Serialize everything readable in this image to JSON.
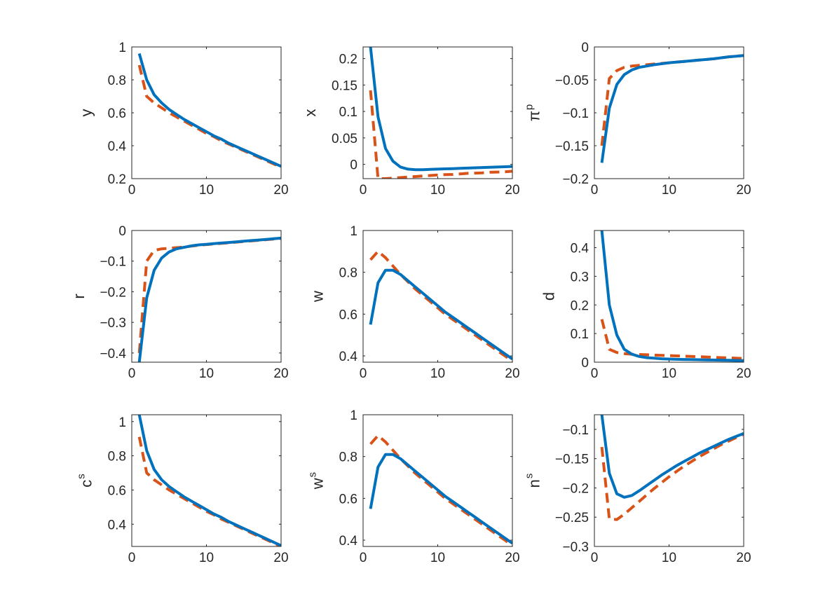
{
  "chart_data": [
    {
      "type": "line",
      "ylabel": "y",
      "xlim": [
        0,
        20
      ],
      "ylim": [
        0.2,
        1
      ],
      "xticks": [
        "0",
        "10",
        "20"
      ],
      "yticks": [
        "0.2",
        "0.4",
        "0.6",
        "0.8",
        "1"
      ],
      "series": [
        {
          "color": "#0072BD",
          "style": "solid",
          "x": [
            1,
            2,
            3,
            4,
            5,
            6,
            7,
            8,
            9,
            10,
            11,
            12,
            13,
            14,
            15,
            16,
            17,
            18,
            19,
            20
          ],
          "values": [
            0.96,
            0.8,
            0.71,
            0.66,
            0.62,
            0.59,
            0.56,
            0.535,
            0.51,
            0.485,
            0.46,
            0.44,
            0.415,
            0.395,
            0.375,
            0.355,
            0.335,
            0.315,
            0.295,
            0.275
          ]
        },
        {
          "color": "#D95319",
          "style": "dashed",
          "x": [
            1,
            2,
            3,
            4,
            5,
            6,
            7,
            8,
            9,
            10,
            11,
            12,
            13,
            14,
            15,
            16,
            17,
            18,
            19,
            20
          ],
          "values": [
            0.89,
            0.7,
            0.66,
            0.63,
            0.6,
            0.575,
            0.55,
            0.525,
            0.5,
            0.475,
            0.455,
            0.43,
            0.41,
            0.39,
            0.37,
            0.35,
            0.33,
            0.31,
            0.29,
            0.27
          ]
        }
      ]
    },
    {
      "type": "line",
      "ylabel": "x",
      "xlim": [
        0,
        20
      ],
      "ylim": [
        -0.027,
        0.222
      ],
      "xticks": [
        "0",
        "10",
        "20"
      ],
      "yticks": [
        "0",
        "0.05",
        "0.1",
        "0.15",
        "0.2"
      ],
      "series": [
        {
          "color": "#0072BD",
          "style": "solid",
          "x": [
            1,
            2,
            3,
            4,
            5,
            6,
            7,
            8,
            9,
            10,
            11,
            12,
            13,
            14,
            15,
            16,
            17,
            18,
            19,
            20
          ],
          "values": [
            0.222,
            0.09,
            0.03,
            0.006,
            -0.005,
            -0.009,
            -0.01,
            -0.01,
            -0.0095,
            -0.009,
            -0.0085,
            -0.008,
            -0.0075,
            -0.007,
            -0.0065,
            -0.006,
            -0.0055,
            -0.005,
            -0.0045,
            -0.004
          ]
        },
        {
          "color": "#D95319",
          "style": "dashed",
          "x": [
            1,
            2,
            3,
            4,
            5,
            6,
            7,
            8,
            9,
            10,
            11,
            12,
            13,
            14,
            15,
            16,
            17,
            18,
            19,
            20
          ],
          "values": [
            0.14,
            -0.027,
            -0.027,
            -0.026,
            -0.025,
            -0.024,
            -0.023,
            -0.022,
            -0.021,
            -0.02,
            -0.0195,
            -0.019,
            -0.018,
            -0.017,
            -0.0165,
            -0.016,
            -0.015,
            -0.0145,
            -0.014,
            -0.013
          ]
        }
      ]
    },
    {
      "type": "line",
      "ylabel": "π",
      "ylabel_sup": "p",
      "xlim": [
        0,
        20
      ],
      "ylim": [
        -0.2,
        0
      ],
      "xticks": [
        "0",
        "10",
        "20"
      ],
      "yticks": [
        "−0.2",
        "−0.15",
        "−0.1",
        "−0.05",
        "0"
      ],
      "series": [
        {
          "color": "#0072BD",
          "style": "solid",
          "x": [
            1,
            2,
            3,
            4,
            5,
            6,
            7,
            8,
            9,
            10,
            11,
            12,
            13,
            14,
            15,
            16,
            17,
            18,
            19,
            20
          ],
          "values": [
            -0.176,
            -0.093,
            -0.057,
            -0.042,
            -0.035,
            -0.031,
            -0.029,
            -0.027,
            -0.0255,
            -0.024,
            -0.023,
            -0.022,
            -0.021,
            -0.02,
            -0.019,
            -0.018,
            -0.0165,
            -0.015,
            -0.014,
            -0.013
          ]
        },
        {
          "color": "#D95319",
          "style": "dashed",
          "x": [
            1,
            2,
            3,
            4,
            5,
            6,
            7,
            8,
            9,
            10,
            11,
            12,
            13,
            14,
            15,
            16,
            17,
            18,
            19,
            20
          ],
          "values": [
            -0.15,
            -0.048,
            -0.036,
            -0.031,
            -0.029,
            -0.028,
            -0.027,
            -0.026,
            -0.025,
            -0.024,
            -0.023,
            -0.022,
            -0.021,
            -0.02,
            -0.019,
            -0.018,
            -0.0165,
            -0.015,
            -0.014,
            -0.013
          ]
        }
      ]
    },
    {
      "type": "line",
      "ylabel": "r",
      "xlim": [
        0,
        20
      ],
      "ylim": [
        -0.43,
        0
      ],
      "xticks": [
        "0",
        "10",
        "20"
      ],
      "yticks": [
        "−0.4",
        "−0.3",
        "−0.2",
        "−0.1",
        "0"
      ],
      "series": [
        {
          "color": "#0072BD",
          "style": "solid",
          "x": [
            1,
            2,
            3,
            4,
            5,
            6,
            7,
            8,
            9,
            10,
            11,
            12,
            13,
            14,
            15,
            16,
            17,
            18,
            19,
            20
          ],
          "values": [
            -0.43,
            -0.22,
            -0.13,
            -0.09,
            -0.07,
            -0.06,
            -0.055,
            -0.05,
            -0.047,
            -0.045,
            -0.043,
            -0.041,
            -0.039,
            -0.037,
            -0.035,
            -0.033,
            -0.031,
            -0.029,
            -0.027,
            -0.025
          ]
        },
        {
          "color": "#D95319",
          "style": "dashed",
          "x": [
            1,
            2,
            3,
            4,
            5,
            6,
            7,
            8,
            9,
            10,
            11,
            12,
            13,
            14,
            15,
            16,
            17,
            18,
            19,
            20
          ],
          "values": [
            -0.4,
            -0.1,
            -0.065,
            -0.06,
            -0.058,
            -0.056,
            -0.054,
            -0.051,
            -0.048,
            -0.046,
            -0.044,
            -0.042,
            -0.04,
            -0.038,
            -0.036,
            -0.034,
            -0.032,
            -0.03,
            -0.028,
            -0.026
          ]
        }
      ]
    },
    {
      "type": "line",
      "ylabel": "w",
      "xlim": [
        0,
        20
      ],
      "ylim": [
        0.37,
        1
      ],
      "xticks": [
        "0",
        "10",
        "20"
      ],
      "yticks": [
        "0.4",
        "0.6",
        "0.8",
        "1"
      ],
      "series": [
        {
          "color": "#0072BD",
          "style": "solid",
          "x": [
            1,
            2,
            3,
            4,
            5,
            6,
            7,
            8,
            9,
            10,
            11,
            12,
            13,
            14,
            15,
            16,
            17,
            18,
            19,
            20
          ],
          "values": [
            0.55,
            0.75,
            0.81,
            0.81,
            0.79,
            0.76,
            0.73,
            0.7,
            0.67,
            0.64,
            0.61,
            0.585,
            0.56,
            0.535,
            0.51,
            0.485,
            0.46,
            0.435,
            0.41,
            0.385
          ]
        },
        {
          "color": "#D95319",
          "style": "dashed",
          "x": [
            1,
            2,
            3,
            4,
            5,
            6,
            7,
            8,
            9,
            10,
            11,
            12,
            13,
            14,
            15,
            16,
            17,
            18,
            19,
            20
          ],
          "values": [
            0.86,
            0.9,
            0.87,
            0.83,
            0.79,
            0.755,
            0.72,
            0.69,
            0.66,
            0.63,
            0.6,
            0.575,
            0.55,
            0.525,
            0.5,
            0.475,
            0.45,
            0.425,
            0.4,
            0.375
          ]
        }
      ]
    },
    {
      "type": "line",
      "ylabel": "d",
      "xlim": [
        0,
        20
      ],
      "ylim": [
        0,
        0.46
      ],
      "xticks": [
        "0",
        "10",
        "20"
      ],
      "yticks": [
        "0",
        "0.1",
        "0.2",
        "0.3",
        "0.4"
      ],
      "series": [
        {
          "color": "#0072BD",
          "style": "solid",
          "x": [
            1,
            2,
            3,
            4,
            5,
            6,
            7,
            8,
            9,
            10,
            11,
            12,
            13,
            14,
            15,
            16,
            17,
            18,
            19,
            20
          ],
          "values": [
            0.46,
            0.2,
            0.095,
            0.045,
            0.028,
            0.02,
            0.016,
            0.014,
            0.012,
            0.011,
            0.01,
            0.0095,
            0.009,
            0.0085,
            0.008,
            0.0075,
            0.007,
            0.0065,
            0.006,
            0.0055
          ]
        },
        {
          "color": "#D95319",
          "style": "dashed",
          "x": [
            1,
            2,
            3,
            4,
            5,
            6,
            7,
            8,
            9,
            10,
            11,
            12,
            13,
            14,
            15,
            16,
            17,
            18,
            19,
            20
          ],
          "values": [
            0.15,
            0.045,
            0.034,
            0.03,
            0.028,
            0.027,
            0.026,
            0.025,
            0.024,
            0.023,
            0.022,
            0.021,
            0.02,
            0.019,
            0.018,
            0.017,
            0.016,
            0.015,
            0.014,
            0.013
          ]
        }
      ]
    },
    {
      "type": "line",
      "ylabel": "c",
      "ylabel_sup": "s",
      "xlim": [
        0,
        20
      ],
      "ylim": [
        0.27,
        1.04
      ],
      "xticks": [
        "0",
        "10",
        "20"
      ],
      "yticks": [
        "0.4",
        "0.6",
        "0.8",
        "1"
      ],
      "series": [
        {
          "color": "#0072BD",
          "style": "solid",
          "x": [
            1,
            2,
            3,
            4,
            5,
            6,
            7,
            8,
            9,
            10,
            11,
            12,
            13,
            14,
            15,
            16,
            17,
            18,
            19,
            20
          ],
          "values": [
            1.04,
            0.83,
            0.72,
            0.66,
            0.62,
            0.59,
            0.56,
            0.535,
            0.51,
            0.485,
            0.46,
            0.44,
            0.415,
            0.395,
            0.375,
            0.355,
            0.335,
            0.315,
            0.295,
            0.275
          ]
        },
        {
          "color": "#D95319",
          "style": "dashed",
          "x": [
            1,
            2,
            3,
            4,
            5,
            6,
            7,
            8,
            9,
            10,
            11,
            12,
            13,
            14,
            15,
            16,
            17,
            18,
            19,
            20
          ],
          "values": [
            0.91,
            0.7,
            0.66,
            0.63,
            0.6,
            0.575,
            0.55,
            0.525,
            0.5,
            0.475,
            0.455,
            0.43,
            0.41,
            0.39,
            0.37,
            0.35,
            0.33,
            0.31,
            0.29,
            0.27
          ]
        }
      ]
    },
    {
      "type": "line",
      "ylabel": "w",
      "ylabel_sup": "s",
      "xlim": [
        0,
        20
      ],
      "ylim": [
        0.37,
        1
      ],
      "xticks": [
        "0",
        "10",
        "20"
      ],
      "yticks": [
        "0.4",
        "0.6",
        "0.8",
        "1"
      ],
      "series": [
        {
          "color": "#0072BD",
          "style": "solid",
          "x": [
            1,
            2,
            3,
            4,
            5,
            6,
            7,
            8,
            9,
            10,
            11,
            12,
            13,
            14,
            15,
            16,
            17,
            18,
            19,
            20
          ],
          "values": [
            0.55,
            0.75,
            0.81,
            0.81,
            0.79,
            0.76,
            0.73,
            0.7,
            0.67,
            0.64,
            0.61,
            0.585,
            0.56,
            0.535,
            0.51,
            0.485,
            0.46,
            0.435,
            0.41,
            0.385
          ]
        },
        {
          "color": "#D95319",
          "style": "dashed",
          "x": [
            1,
            2,
            3,
            4,
            5,
            6,
            7,
            8,
            9,
            10,
            11,
            12,
            13,
            14,
            15,
            16,
            17,
            18,
            19,
            20
          ],
          "values": [
            0.86,
            0.9,
            0.87,
            0.83,
            0.79,
            0.755,
            0.72,
            0.69,
            0.66,
            0.63,
            0.6,
            0.575,
            0.55,
            0.525,
            0.5,
            0.475,
            0.45,
            0.425,
            0.4,
            0.375
          ]
        }
      ]
    },
    {
      "type": "line",
      "ylabel": "n",
      "ylabel_sup": "s",
      "xlim": [
        0,
        20
      ],
      "ylim": [
        -0.3,
        -0.075
      ],
      "xticks": [
        "0",
        "10",
        "20"
      ],
      "yticks": [
        "−0.3",
        "−0.25",
        "−0.2",
        "−0.15",
        "−0.1"
      ],
      "series": [
        {
          "color": "#0072BD",
          "style": "solid",
          "x": [
            1,
            2,
            3,
            4,
            5,
            6,
            7,
            8,
            9,
            10,
            11,
            12,
            13,
            14,
            15,
            16,
            17,
            18,
            19,
            20
          ],
          "values": [
            -0.075,
            -0.175,
            -0.21,
            -0.216,
            -0.213,
            -0.205,
            -0.196,
            -0.187,
            -0.178,
            -0.17,
            -0.162,
            -0.155,
            -0.148,
            -0.141,
            -0.135,
            -0.129,
            -0.123,
            -0.117,
            -0.112,
            -0.107
          ]
        },
        {
          "color": "#D95319",
          "style": "dashed",
          "x": [
            1,
            2,
            3,
            4,
            5,
            6,
            7,
            8,
            9,
            10,
            11,
            12,
            13,
            14,
            15,
            16,
            17,
            18,
            19,
            20
          ],
          "values": [
            -0.13,
            -0.253,
            -0.254,
            -0.245,
            -0.234,
            -0.223,
            -0.212,
            -0.201,
            -0.191,
            -0.181,
            -0.172,
            -0.163,
            -0.155,
            -0.147,
            -0.14,
            -0.133,
            -0.126,
            -0.12,
            -0.114,
            -0.108
          ]
        }
      ]
    }
  ]
}
